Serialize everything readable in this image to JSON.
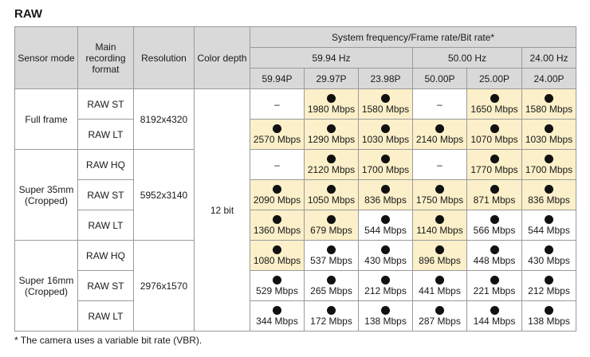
{
  "title": "RAW",
  "headers": {
    "sensor_mode": "Sensor mode",
    "main_format": "Main recording format",
    "resolution": "Resolution",
    "color_depth": "Color depth",
    "system_group": "System frequency/Frame rate/Bit rate*",
    "freq_groups": [
      "59.94 Hz",
      "50.00 Hz",
      "24.00 Hz"
    ],
    "frame_rates": [
      "59.94P",
      "29.97P",
      "23.98P",
      "50.00P",
      "25.00P",
      "24.00P"
    ]
  },
  "sensor_modes": [
    "Full frame",
    "Super 35mm (Cropped)",
    "Super 16mm (Cropped)"
  ],
  "resolutions": [
    "8192x4320",
    "5952x3140",
    "2976x1570"
  ],
  "color_depth": "12 bit",
  "rows": [
    {
      "format": "RAW ST",
      "cells": [
        {
          "avail": false,
          "text": "–",
          "highlight": false
        },
        {
          "avail": true,
          "text": "1980 Mbps",
          "highlight": true
        },
        {
          "avail": true,
          "text": "1580 Mbps",
          "highlight": true
        },
        {
          "avail": false,
          "text": "–",
          "highlight": false
        },
        {
          "avail": true,
          "text": "1650 Mbps",
          "highlight": true
        },
        {
          "avail": true,
          "text": "1580 Mbps",
          "highlight": true
        }
      ]
    },
    {
      "format": "RAW LT",
      "cells": [
        {
          "avail": true,
          "text": "2570 Mbps",
          "highlight": true
        },
        {
          "avail": true,
          "text": "1290 Mbps",
          "highlight": true
        },
        {
          "avail": true,
          "text": "1030 Mbps",
          "highlight": true
        },
        {
          "avail": true,
          "text": "2140 Mbps",
          "highlight": true
        },
        {
          "avail": true,
          "text": "1070 Mbps",
          "highlight": true
        },
        {
          "avail": true,
          "text": "1030 Mbps",
          "highlight": true
        }
      ]
    },
    {
      "format": "RAW HQ",
      "cells": [
        {
          "avail": false,
          "text": "–",
          "highlight": false
        },
        {
          "avail": true,
          "text": "2120 Mbps",
          "highlight": true
        },
        {
          "avail": true,
          "text": "1700 Mbps",
          "highlight": true
        },
        {
          "avail": false,
          "text": "–",
          "highlight": false
        },
        {
          "avail": true,
          "text": "1770 Mbps",
          "highlight": true
        },
        {
          "avail": true,
          "text": "1700 Mbps",
          "highlight": true
        }
      ]
    },
    {
      "format": "RAW ST",
      "cells": [
        {
          "avail": true,
          "text": "2090 Mbps",
          "highlight": true
        },
        {
          "avail": true,
          "text": "1050 Mbps",
          "highlight": true
        },
        {
          "avail": true,
          "text": "836 Mbps",
          "highlight": true
        },
        {
          "avail": true,
          "text": "1750 Mbps",
          "highlight": true
        },
        {
          "avail": true,
          "text": "871 Mbps",
          "highlight": true
        },
        {
          "avail": true,
          "text": "836 Mbps",
          "highlight": true
        }
      ]
    },
    {
      "format": "RAW LT",
      "cells": [
        {
          "avail": true,
          "text": "1360 Mbps",
          "highlight": true
        },
        {
          "avail": true,
          "text": "679 Mbps",
          "highlight": true
        },
        {
          "avail": true,
          "text": "544 Mbps",
          "highlight": false
        },
        {
          "avail": true,
          "text": "1140 Mbps",
          "highlight": true
        },
        {
          "avail": true,
          "text": "566 Mbps",
          "highlight": false
        },
        {
          "avail": true,
          "text": "544 Mbps",
          "highlight": false
        }
      ]
    },
    {
      "format": "RAW HQ",
      "cells": [
        {
          "avail": true,
          "text": "1080 Mbps",
          "highlight": true
        },
        {
          "avail": true,
          "text": "537 Mbps",
          "highlight": false
        },
        {
          "avail": true,
          "text": "430 Mbps",
          "highlight": false
        },
        {
          "avail": true,
          "text": "896 Mbps",
          "highlight": true
        },
        {
          "avail": true,
          "text": "448 Mbps",
          "highlight": false
        },
        {
          "avail": true,
          "text": "430 Mbps",
          "highlight": false
        }
      ]
    },
    {
      "format": "RAW ST",
      "cells": [
        {
          "avail": true,
          "text": "529 Mbps",
          "highlight": false
        },
        {
          "avail": true,
          "text": "265 Mbps",
          "highlight": false
        },
        {
          "avail": true,
          "text": "212 Mbps",
          "highlight": false
        },
        {
          "avail": true,
          "text": "441 Mbps",
          "highlight": false
        },
        {
          "avail": true,
          "text": "221 Mbps",
          "highlight": false
        },
        {
          "avail": true,
          "text": "212 Mbps",
          "highlight": false
        }
      ]
    },
    {
      "format": "RAW LT",
      "cells": [
        {
          "avail": true,
          "text": "344 Mbps",
          "highlight": false
        },
        {
          "avail": true,
          "text": "172 Mbps",
          "highlight": false
        },
        {
          "avail": true,
          "text": "138 Mbps",
          "highlight": false
        },
        {
          "avail": true,
          "text": "287 Mbps",
          "highlight": false
        },
        {
          "avail": true,
          "text": "144 Mbps",
          "highlight": false
        },
        {
          "avail": true,
          "text": "138 Mbps",
          "highlight": false
        }
      ]
    }
  ],
  "icons": {
    "available": "filled-circle-icon"
  },
  "colors": {
    "header_bg": "#d9d9d9",
    "highlight": "#fbf0c9",
    "border": "#9a9a9a"
  },
  "footnote": "* The camera uses a variable bit rate (VBR)."
}
